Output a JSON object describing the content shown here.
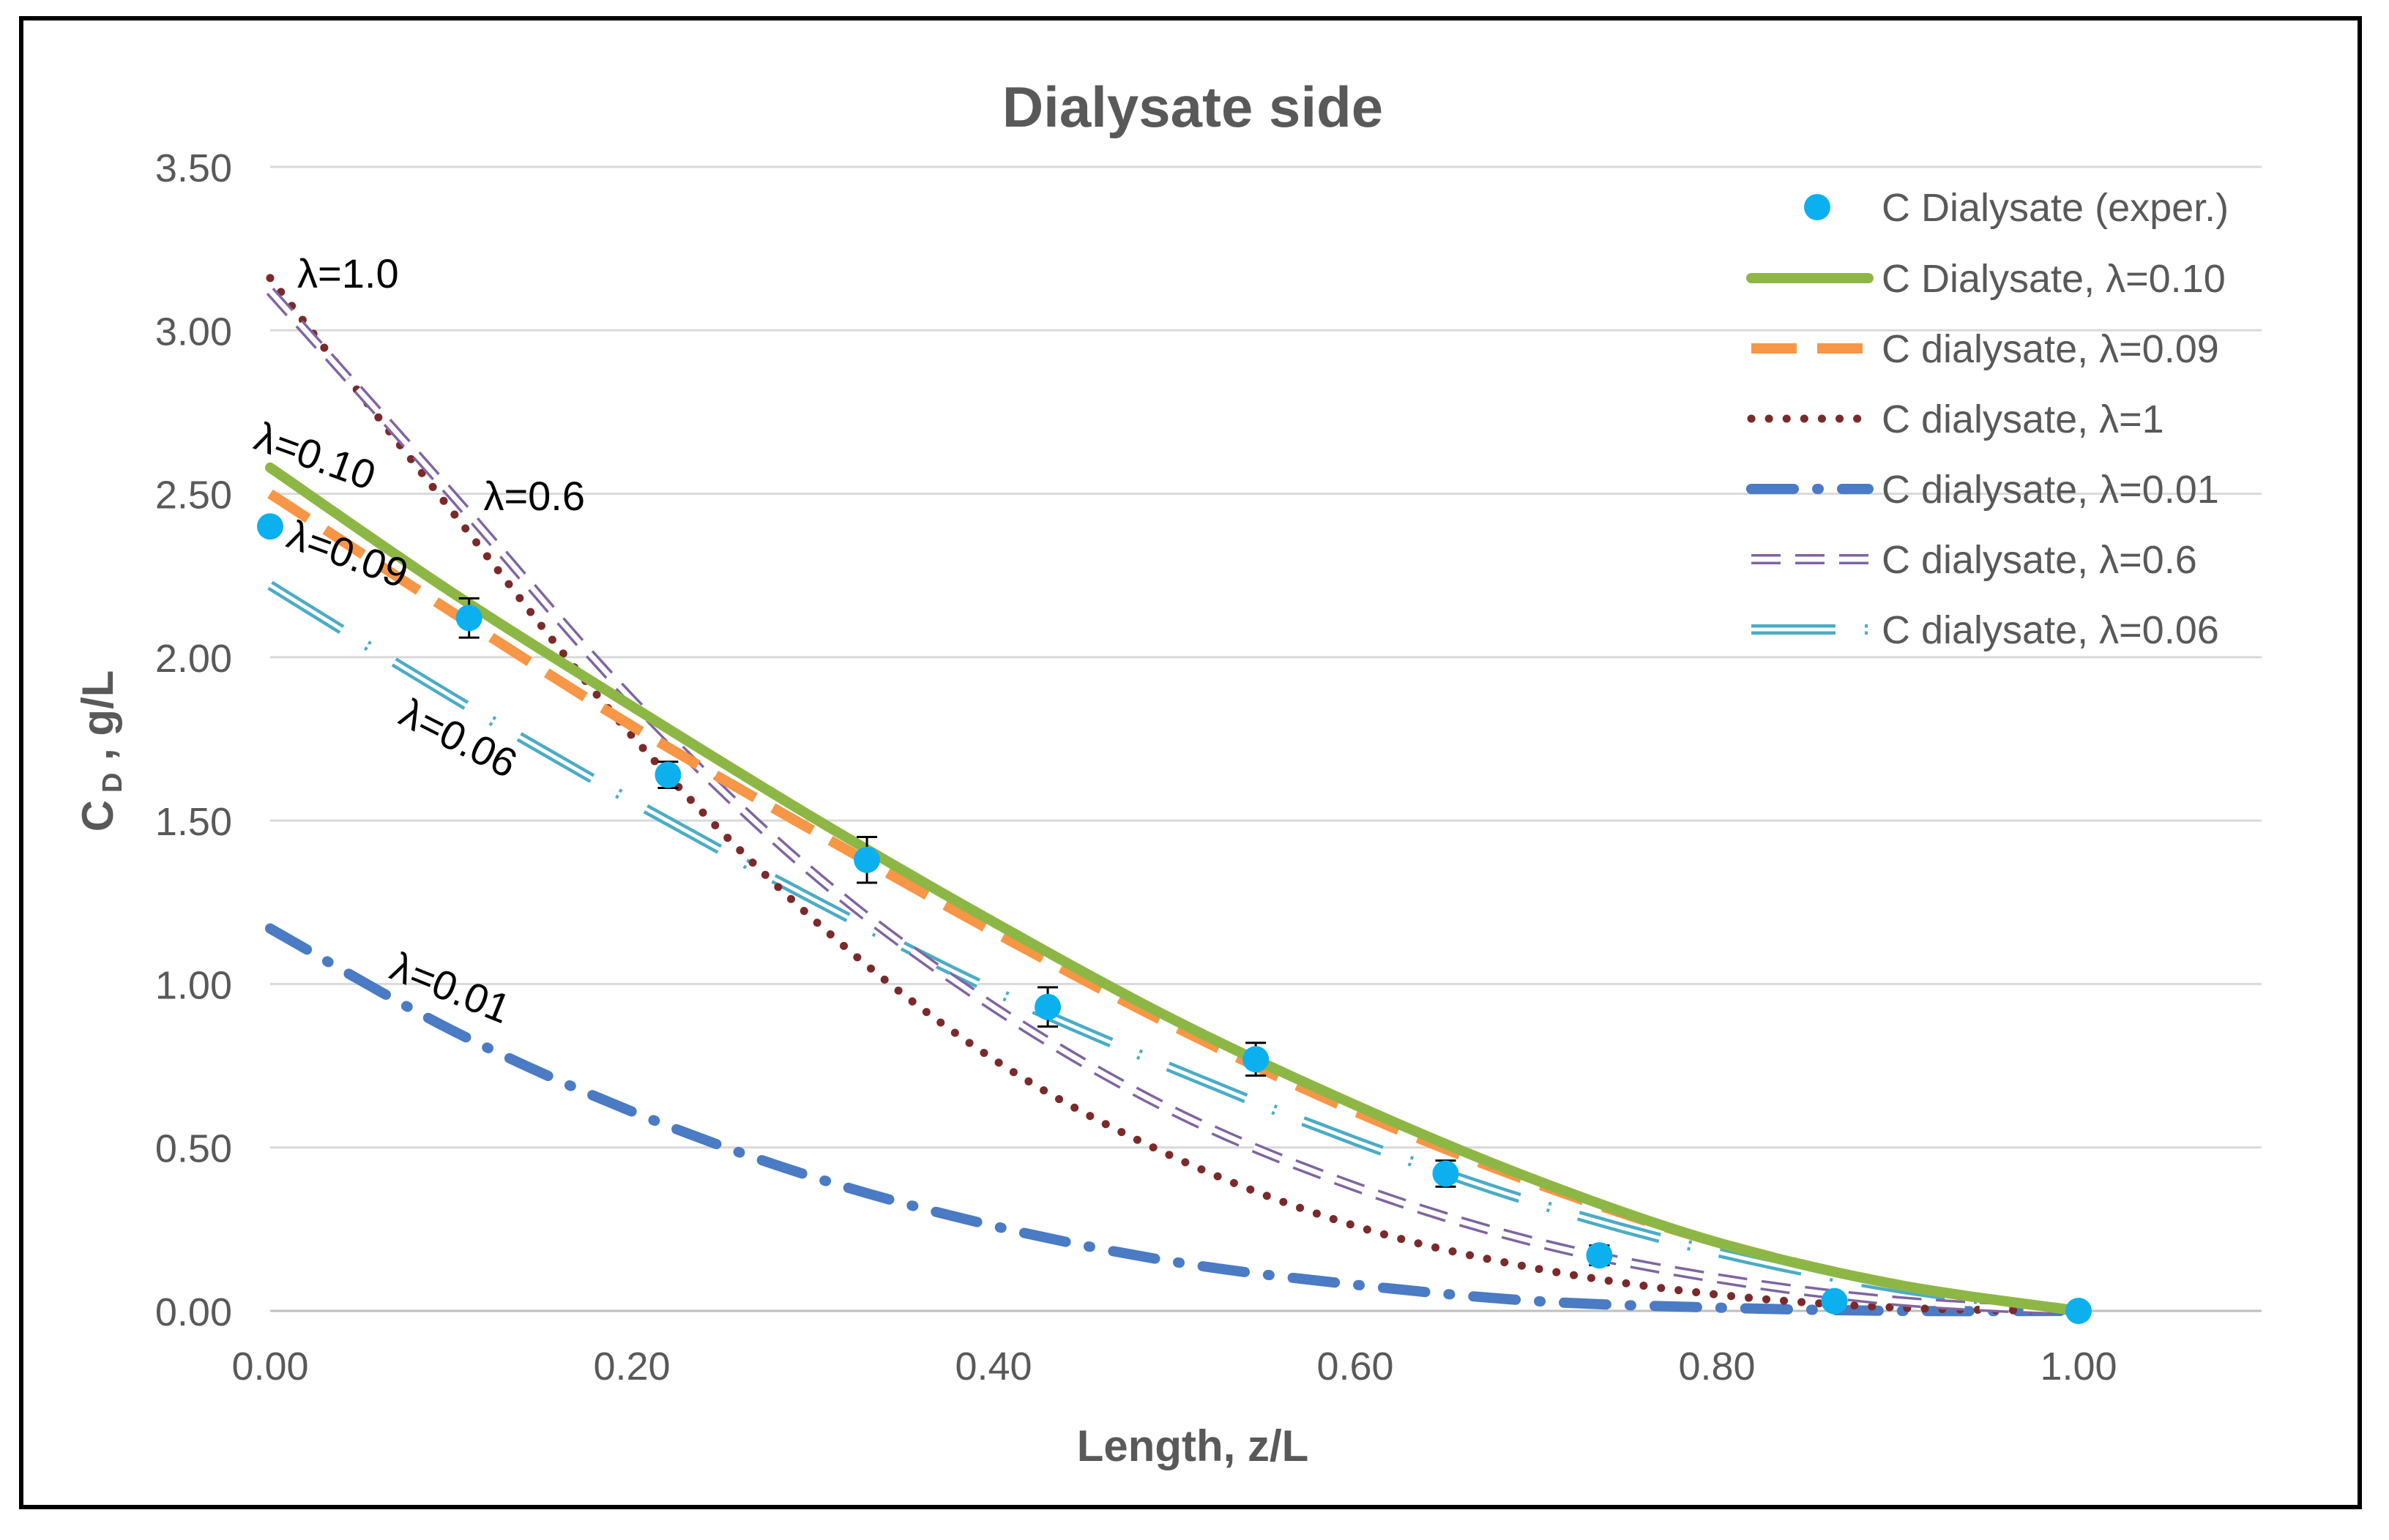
{
  "chart_data": {
    "type": "line",
    "title": "Dialysate side",
    "xlabel": "Length, z/L",
    "ylabel_main": "C",
    "ylabel_sub": "D",
    "ylabel_rest": " , g/L",
    "xlim": [
      0,
      1.1
    ],
    "ylim": [
      0,
      3.5
    ],
    "x_ticks": [
      "0.00",
      "0.20",
      "0.40",
      "0.60",
      "0.80",
      "1.00"
    ],
    "y_ticks": [
      "0.00",
      "0.50",
      "1.00",
      "1.50",
      "2.00",
      "2.50",
      "3.00",
      "3.50"
    ],
    "gridlines": "horizontal",
    "legend_position": "top-right",
    "experimental": {
      "name": "C Dialysate (exper.)",
      "color": "#0DB0EE",
      "x": [
        0.0,
        0.11,
        0.22,
        0.33,
        0.43,
        0.545,
        0.65,
        0.735,
        0.865,
        1.0
      ],
      "y": [
        2.4,
        2.12,
        1.64,
        1.38,
        0.93,
        0.77,
        0.42,
        0.17,
        0.03,
        0.0
      ],
      "err": [
        0,
        0.06,
        0.04,
        0.07,
        0.06,
        0.05,
        0.04,
        0.03,
        0.02,
        0
      ]
    },
    "series": [
      {
        "name": "C Dialysate, λ=0.10",
        "style": "solid",
        "color": "#8DB745",
        "x": [
          0,
          0.1,
          0.2,
          0.3,
          0.4,
          0.5,
          0.6,
          0.7,
          0.8,
          0.9,
          1.0
        ],
        "y": [
          2.58,
          2.2,
          1.85,
          1.51,
          1.19,
          0.89,
          0.63,
          0.4,
          0.21,
          0.08,
          0.0
        ]
      },
      {
        "name": "C dialysate, λ=0.09",
        "style": "longdash",
        "color": "#F79646",
        "x": [
          0,
          0.1,
          0.2,
          0.3,
          0.4,
          0.5,
          0.6,
          0.7,
          0.8,
          0.9,
          1.0
        ],
        "y": [
          2.5,
          2.14,
          1.79,
          1.47,
          1.16,
          0.87,
          0.61,
          0.39,
          0.21,
          0.08,
          0.0
        ]
      },
      {
        "name": "C dialysate, λ=1",
        "style": "dotted",
        "color": "#7B2A2A",
        "x": [
          0,
          0.1,
          0.2,
          0.3,
          0.4,
          0.5,
          0.6,
          0.7,
          0.8,
          0.9,
          1.0
        ],
        "y": [
          3.16,
          2.45,
          1.76,
          1.2,
          0.77,
          0.47,
          0.26,
          0.13,
          0.05,
          0.01,
          0.0
        ]
      },
      {
        "name": "C dialysate, λ=0.01",
        "style": "dashdot",
        "color": "#4A7BC4",
        "x": [
          0,
          0.1,
          0.2,
          0.3,
          0.4,
          0.5,
          0.6,
          0.7,
          0.8,
          0.9,
          1.0
        ],
        "y": [
          1.17,
          0.86,
          0.61,
          0.41,
          0.26,
          0.15,
          0.08,
          0.03,
          0.01,
          0.0,
          0.0
        ]
      },
      {
        "name": "C dialysate, λ=0.6",
        "style": "hollowdash",
        "color": "#8064A2",
        "x": [
          0,
          0.1,
          0.2,
          0.3,
          0.4,
          0.5,
          0.6,
          0.7,
          0.8,
          0.9,
          1.0
        ],
        "y": [
          3.12,
          2.5,
          1.87,
          1.34,
          0.93,
          0.61,
          0.38,
          0.21,
          0.1,
          0.03,
          0.0
        ]
      },
      {
        "name": "C dialysate, λ=0.06",
        "style": "longdashdot",
        "color": "#4BACC6",
        "x": [
          0,
          0.1,
          0.2,
          0.3,
          0.4,
          0.5,
          0.6,
          0.7,
          0.8,
          0.9,
          1.0
        ],
        "y": [
          2.22,
          1.88,
          1.56,
          1.26,
          0.98,
          0.74,
          0.52,
          0.33,
          0.18,
          0.07,
          0.0
        ]
      }
    ],
    "annotations": [
      {
        "text": "λ=1.0",
        "x": 0.015,
        "y": 3.13,
        "rotate": 0
      },
      {
        "text": "λ=0.6",
        "x": 0.118,
        "y": 2.45,
        "rotate": 0
      },
      {
        "text": "λ=0.10",
        "x": -0.01,
        "y": 2.64,
        "rotate": 20
      },
      {
        "text": "λ=0.09",
        "x": 0.008,
        "y": 2.34,
        "rotate": 20
      },
      {
        "text": "λ=0.06",
        "x": 0.07,
        "y": 1.8,
        "rotate": 27
      },
      {
        "text": "λ=0.01",
        "x": 0.065,
        "y": 1.02,
        "rotate": 22
      }
    ]
  }
}
